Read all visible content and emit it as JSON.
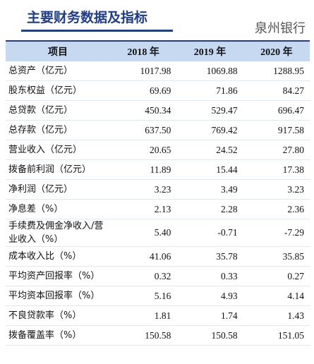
{
  "header": {
    "title": "主要财务数据及指标",
    "bank": "泉州银行"
  },
  "table": {
    "columns": [
      "项目",
      "2018 年",
      "2019 年",
      "2020 年"
    ],
    "rows": [
      [
        "总资产（亿元）",
        "1017.98",
        "1069.88",
        "1288.95"
      ],
      [
        "股东权益（亿元）",
        "69.69",
        "71.86",
        "84.27"
      ],
      [
        "总贷款（亿元）",
        "450.34",
        "529.47",
        "696.47"
      ],
      [
        "总存款（亿元）",
        "637.50",
        "769.42",
        "917.58"
      ],
      [
        "营业收入（亿元）",
        "20.65",
        "24.52",
        "27.80"
      ],
      [
        "拨备前利润（亿元）",
        "11.89",
        "15.44",
        "17.38"
      ],
      [
        "净利润（亿元）",
        "3.23",
        "3.49",
        "3.23"
      ],
      [
        "净息差（%）",
        "2.13",
        "2.28",
        "2.36"
      ],
      [
        "手续费及佣金净收入/营业收入（%）",
        "5.40",
        "-0.71",
        "-7.29"
      ],
      [
        "成本收入比（%）",
        "41.06",
        "35.78",
        "35.85"
      ],
      [
        "平均资产回报率（%）",
        "0.32",
        "0.33",
        "0.27"
      ],
      [
        "平均资本回报率（%）",
        "5.16",
        "4.93",
        "4.14"
      ],
      [
        "不良贷款率（%）",
        "1.81",
        "1.74",
        "1.43"
      ],
      [
        "拨备覆盖率（%）",
        "150.58",
        "150.58",
        "151.05"
      ]
    ]
  }
}
